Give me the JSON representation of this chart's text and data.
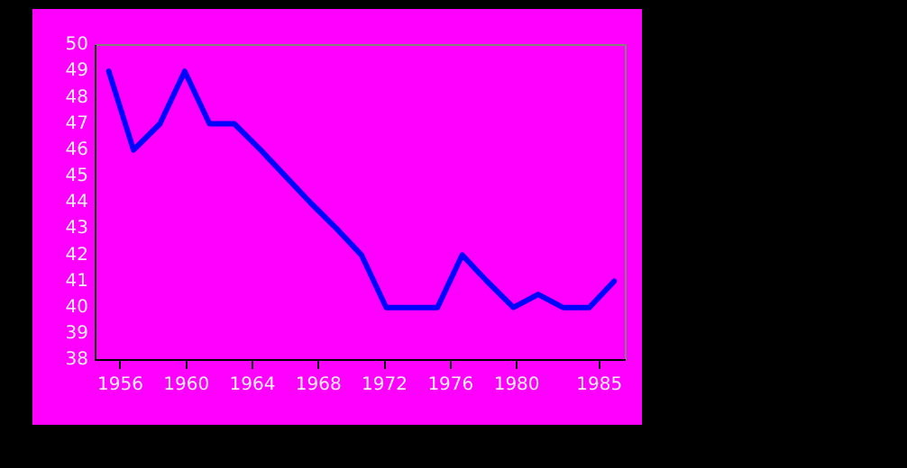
{
  "chart_data": {
    "type": "line",
    "x": [
      1955.3,
      1956.8,
      1958.4,
      1959.9,
      1961.4,
      1962.9,
      1964.5,
      1966.0,
      1967.5,
      1969.1,
      1970.6,
      1972.1,
      1973.7,
      1975.2,
      1976.7,
      1978.2,
      1979.8,
      1981.3,
      1982.8,
      1984.4,
      1985.9
    ],
    "series": [
      {
        "color": "#0000ff",
        "values": [
          49,
          46,
          47,
          49,
          47,
          47,
          46,
          45,
          44,
          43,
          42,
          40,
          40,
          40,
          42,
          41,
          40,
          40.5,
          40,
          40,
          41
        ]
      }
    ],
    "xlim": [
      1954.5,
      1986.6
    ],
    "xticks": [
      1956,
      1960,
      1964,
      1968,
      1972,
      1976,
      1980,
      1985
    ],
    "ylim": [
      38,
      50
    ],
    "yticks": [
      38,
      39,
      40,
      41,
      42,
      43,
      44,
      45,
      46,
      47,
      48,
      49,
      50
    ],
    "grid": false,
    "legend": false,
    "marker": "none",
    "line_style": "solid"
  }
}
